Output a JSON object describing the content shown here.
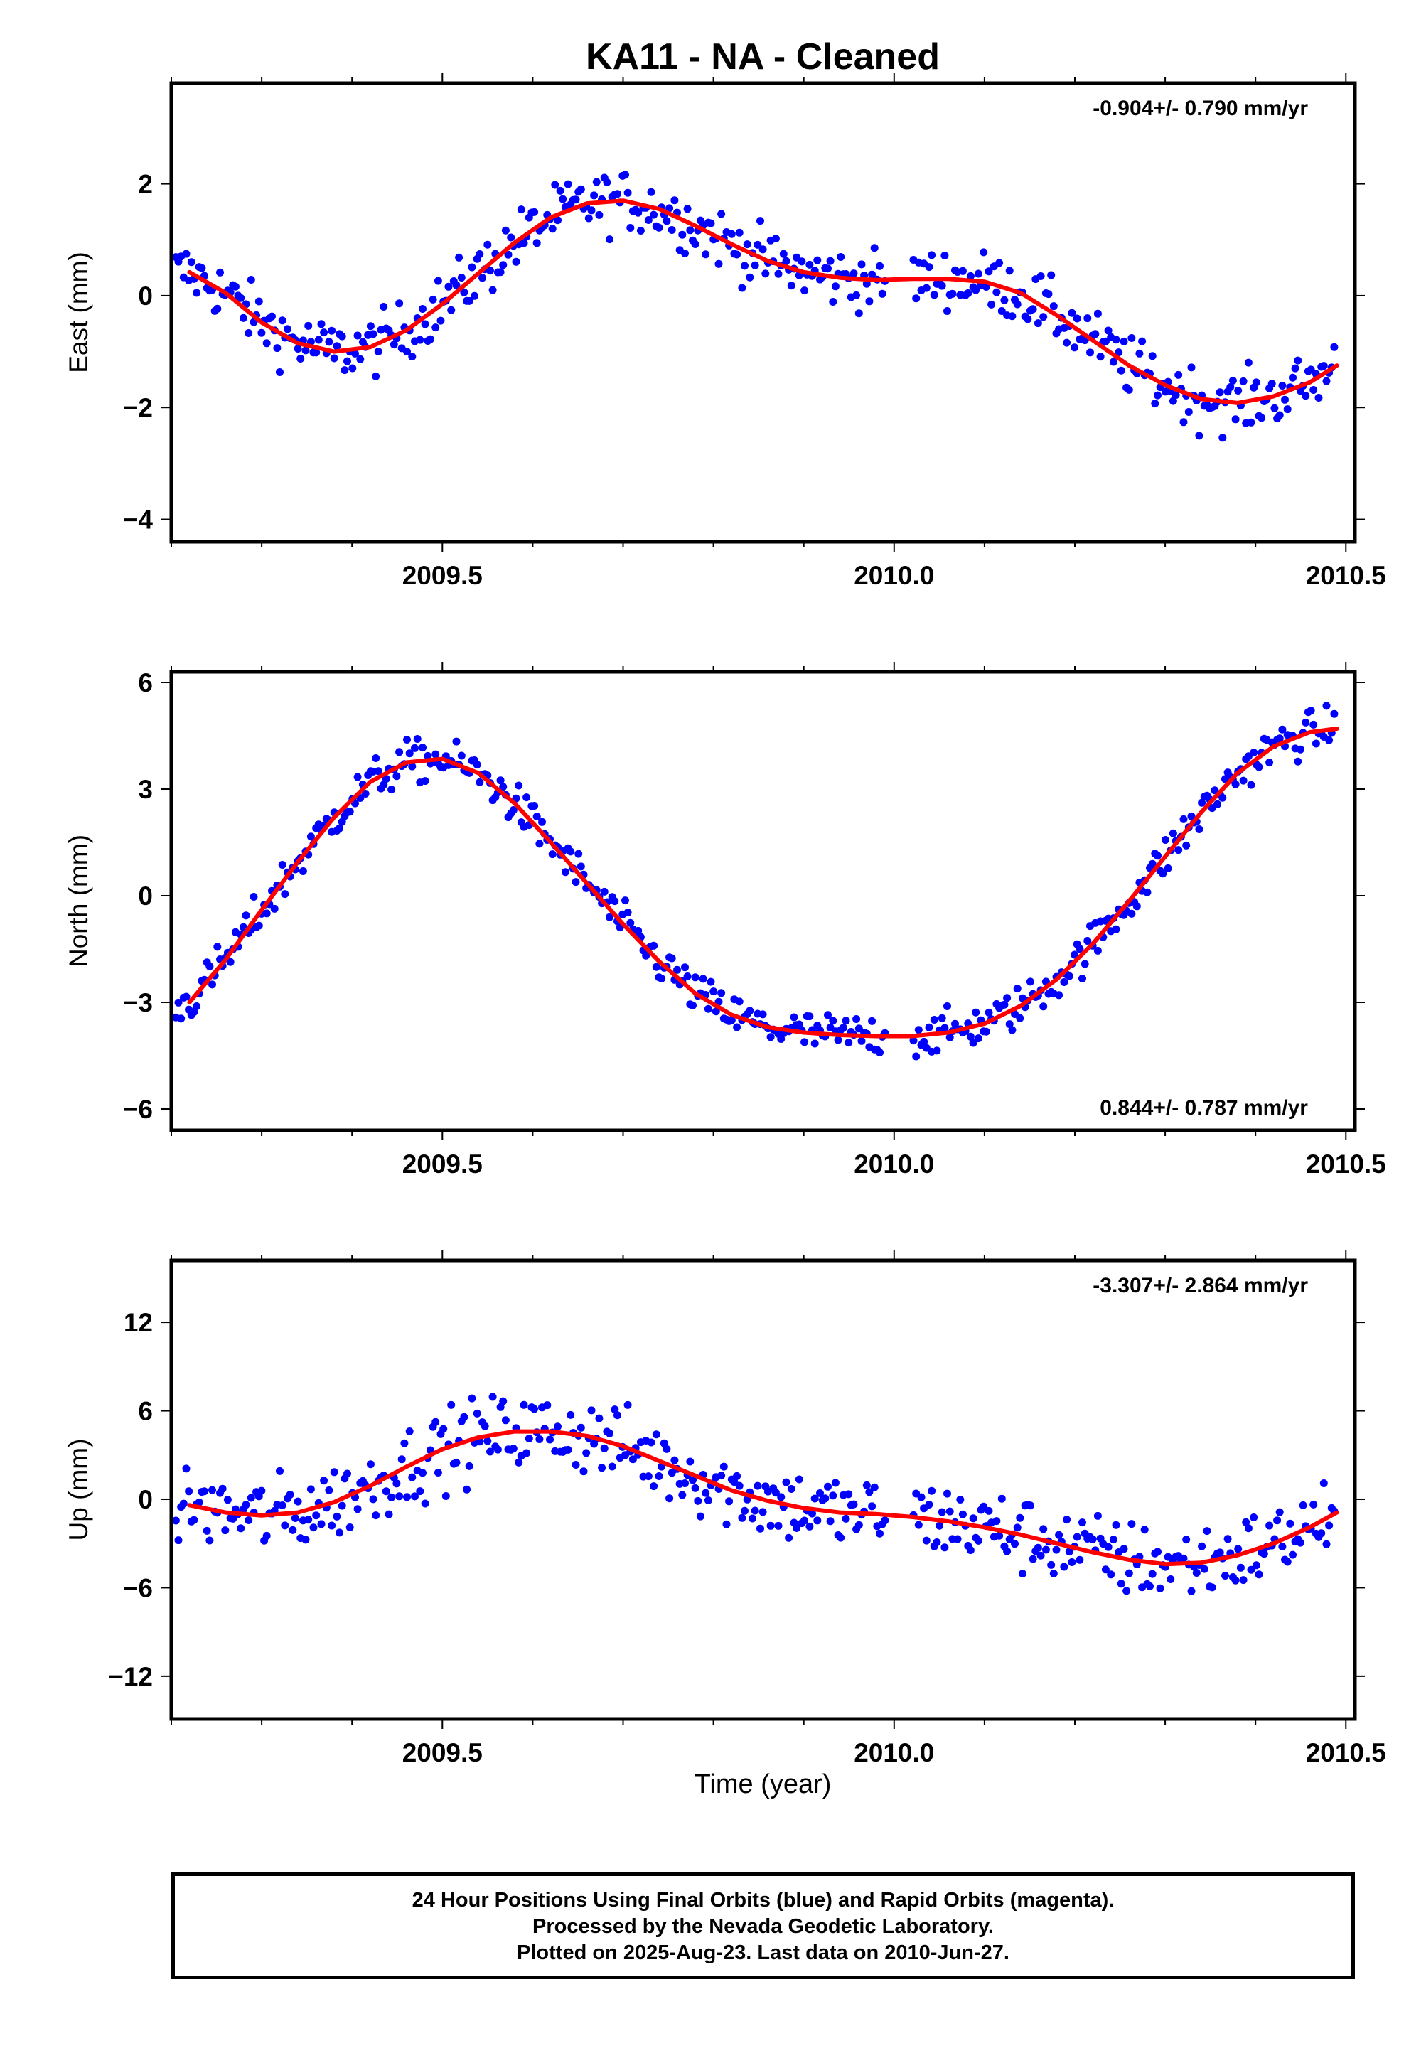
{
  "chart_data": {
    "type": "scatter",
    "title": "KA11  - NA - Cleaned",
    "xlabel": "Time (year)",
    "x_ticks": [
      "2009.5",
      "2010.0",
      "2010.5"
    ],
    "x_range": [
      2009.2,
      2010.51
    ],
    "colors": {
      "points": "#0000ff",
      "fit": "#ff0000",
      "frame": "#000000"
    },
    "panels": [
      {
        "ylabel": "East (mm)",
        "ylim": [
          -4.4,
          3.8
        ],
        "yticks": [
          -4,
          -2,
          0,
          2
        ],
        "ytick_labels": [
          "−4",
          "−2",
          "0",
          "2"
        ],
        "rate_label": "-0.904+/- 0.790 mm/yr",
        "rate_position": "top-right",
        "fit_curve": {
          "x": [
            2009.22,
            2009.26,
            2009.3,
            2009.34,
            2009.38,
            2009.42,
            2009.46,
            2009.5,
            2009.54,
            2009.58,
            2009.62,
            2009.66,
            2009.7,
            2009.74,
            2009.78,
            2009.82,
            2009.86,
            2009.9,
            2009.94,
            2009.98,
            2010.02,
            2010.06,
            2010.1,
            2010.14,
            2010.18,
            2010.22,
            2010.26,
            2010.3,
            2010.34,
            2010.38,
            2010.42,
            2010.46,
            2010.49
          ],
          "y": [
            0.42,
            0.05,
            -0.48,
            -0.85,
            -1.0,
            -0.92,
            -0.62,
            -0.15,
            0.4,
            0.95,
            1.4,
            1.65,
            1.7,
            1.55,
            1.25,
            0.92,
            0.62,
            0.42,
            0.32,
            0.28,
            0.3,
            0.3,
            0.25,
            0.05,
            -0.35,
            -0.8,
            -1.25,
            -1.6,
            -1.85,
            -1.92,
            -1.8,
            -1.55,
            -1.25
          ]
        }
      },
      {
        "ylabel": "North (mm)",
        "ylim": [
          -6.6,
          6.3
        ],
        "yticks": [
          -6,
          -3,
          0,
          3,
          6
        ],
        "ytick_labels": [
          "−6",
          "−3",
          "0",
          "3",
          "6"
        ],
        "rate_label": "0.844+/- 0.787 mm/yr",
        "rate_position": "bottom-right",
        "fit_curve": {
          "x": [
            2009.22,
            2009.26,
            2009.3,
            2009.34,
            2009.38,
            2009.42,
            2009.46,
            2009.5,
            2009.54,
            2009.58,
            2009.62,
            2009.66,
            2009.7,
            2009.74,
            2009.78,
            2009.82,
            2009.86,
            2009.9,
            2009.94,
            2009.98,
            2010.02,
            2010.06,
            2010.1,
            2010.14,
            2010.18,
            2010.22,
            2010.26,
            2010.3,
            2010.34,
            2010.38,
            2010.42,
            2010.46,
            2010.49
          ],
          "y": [
            -3.0,
            -1.8,
            -0.4,
            0.95,
            2.2,
            3.2,
            3.75,
            3.85,
            3.45,
            2.6,
            1.5,
            0.35,
            -0.8,
            -1.85,
            -2.75,
            -3.35,
            -3.7,
            -3.85,
            -3.92,
            -3.95,
            -3.95,
            -3.85,
            -3.6,
            -3.1,
            -2.35,
            -1.35,
            -0.15,
            1.1,
            2.35,
            3.45,
            4.2,
            4.6,
            4.7
          ]
        }
      },
      {
        "ylabel": "Up (mm)",
        "ylim": [
          -14.9,
          16.2
        ],
        "yticks": [
          -12,
          -6,
          0,
          6,
          12
        ],
        "ytick_labels": [
          "−12",
          "−6",
          "0",
          "6",
          "12"
        ],
        "rate_label": "-3.307+/- 2.864 mm/yr",
        "rate_position": "top-right",
        "fit_curve": {
          "x": [
            2009.22,
            2009.26,
            2009.3,
            2009.34,
            2009.38,
            2009.42,
            2009.46,
            2009.5,
            2009.54,
            2009.58,
            2009.62,
            2009.66,
            2009.7,
            2009.74,
            2009.78,
            2009.82,
            2009.86,
            2009.9,
            2009.94,
            2009.98,
            2010.02,
            2010.06,
            2010.1,
            2010.14,
            2010.18,
            2010.22,
            2010.26,
            2010.3,
            2010.34,
            2010.38,
            2010.42,
            2010.46,
            2010.49
          ],
          "y": [
            -0.4,
            -0.9,
            -1.1,
            -0.9,
            -0.2,
            0.9,
            2.2,
            3.4,
            4.2,
            4.6,
            4.6,
            4.3,
            3.6,
            2.6,
            1.6,
            0.6,
            -0.1,
            -0.6,
            -0.9,
            -1.0,
            -1.2,
            -1.5,
            -1.9,
            -2.4,
            -3.0,
            -3.6,
            -4.1,
            -4.4,
            -4.3,
            -3.8,
            -3.0,
            -1.9,
            -0.9
          ]
        }
      }
    ]
  },
  "footer": {
    "line1": "24 Hour Positions Using Final Orbits (blue) and Rapid Orbits (magenta).",
    "line2": "Processed by the Nevada Geodetic Laboratory.",
    "line3": "Plotted on 2025-Aug-23. Last data on 2010-Jun-27."
  }
}
